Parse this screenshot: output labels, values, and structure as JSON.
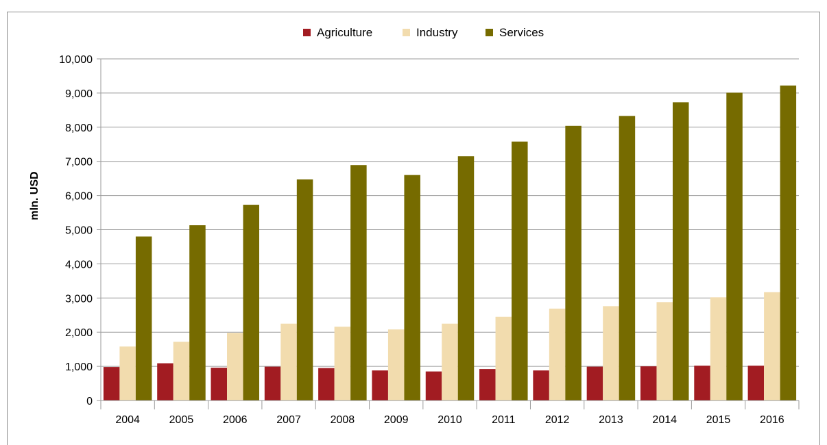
{
  "chart_data": {
    "type": "bar",
    "title": "",
    "xlabel": "",
    "ylabel": "mln. USD",
    "ylim": [
      0,
      10000
    ],
    "yticks": [
      0,
      1000,
      2000,
      3000,
      4000,
      5000,
      6000,
      7000,
      8000,
      9000,
      10000
    ],
    "ytick_labels": [
      "0",
      "1,000",
      "2,000",
      "3,000",
      "4,000",
      "5,000",
      "6,000",
      "7,000",
      "8,000",
      "9,000",
      "10,000"
    ],
    "grid": true,
    "legend_position": "top-center",
    "categories": [
      "2004",
      "2005",
      "2006",
      "2007",
      "2008",
      "2009",
      "2010",
      "2011",
      "2012",
      "2013",
      "2014",
      "2015",
      "2016"
    ],
    "series": [
      {
        "name": "Agriculture",
        "color": "#a21c22",
        "values": [
          980,
          1090,
          960,
          990,
          950,
          880,
          850,
          920,
          880,
          990,
          1000,
          1020,
          1020
        ]
      },
      {
        "name": "Industry",
        "color": "#f2dcae",
        "values": [
          1580,
          1720,
          1980,
          2250,
          2160,
          2080,
          2250,
          2450,
          2690,
          2760,
          2880,
          3020,
          3170
        ]
      },
      {
        "name": "Services",
        "color": "#766b00",
        "values": [
          4800,
          5130,
          5730,
          6470,
          6890,
          6600,
          7150,
          7580,
          8040,
          8330,
          8730,
          9010,
          9220
        ]
      }
    ]
  }
}
